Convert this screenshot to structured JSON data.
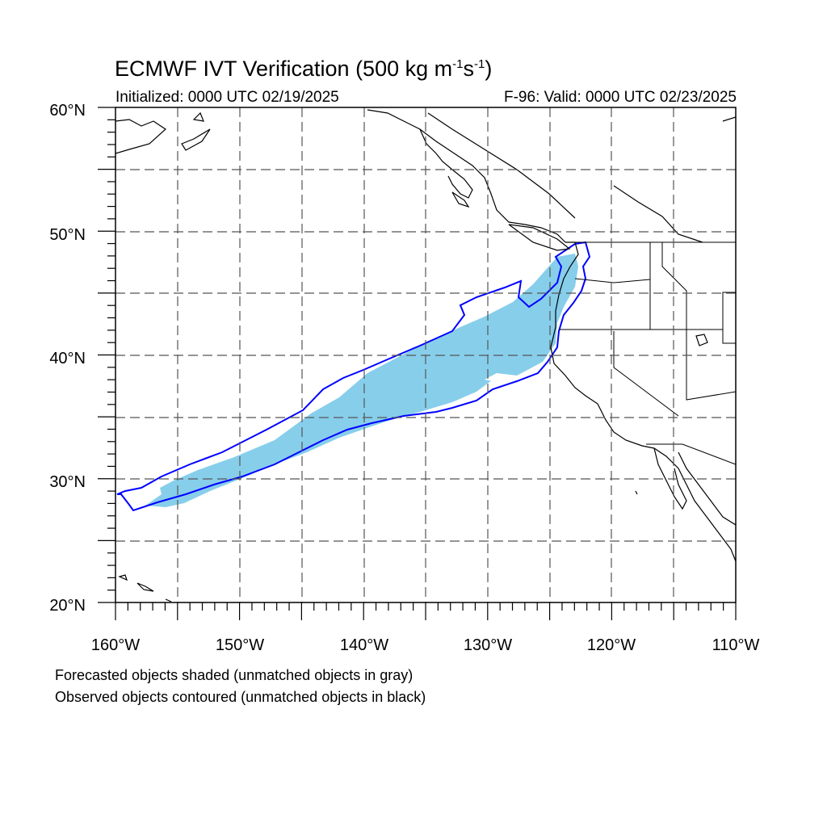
{
  "title": {
    "main": "ECMWF IVT Verification (500 kg m",
    "exp1": "-1",
    "mid": "s",
    "exp2": "-1",
    "end": ")"
  },
  "initialized": "Initialized: 0000 UTC 02/19/2025",
  "valid": "F-96: Valid: 0000 UTC 02/23/2025",
  "axes": {
    "lat_labels": [
      "20°N",
      "30°N",
      "40°N",
      "50°N",
      "60°N"
    ],
    "lon_labels": [
      "160°W",
      "150°W",
      "140°W",
      "130°W",
      "120°W",
      "110°W"
    ],
    "lat_range": [
      20,
      60
    ],
    "lon_range": [
      -160,
      -110
    ]
  },
  "colors": {
    "forecast_fill": "#87ceeb",
    "observed_contour": "#0000ff",
    "coast": "#000000",
    "grid": "#555555"
  },
  "notes": [
    "Forecasted objects shaded (unmatched objects in gray)",
    "Observed objects contoured (unmatched objects in black)"
  ]
}
